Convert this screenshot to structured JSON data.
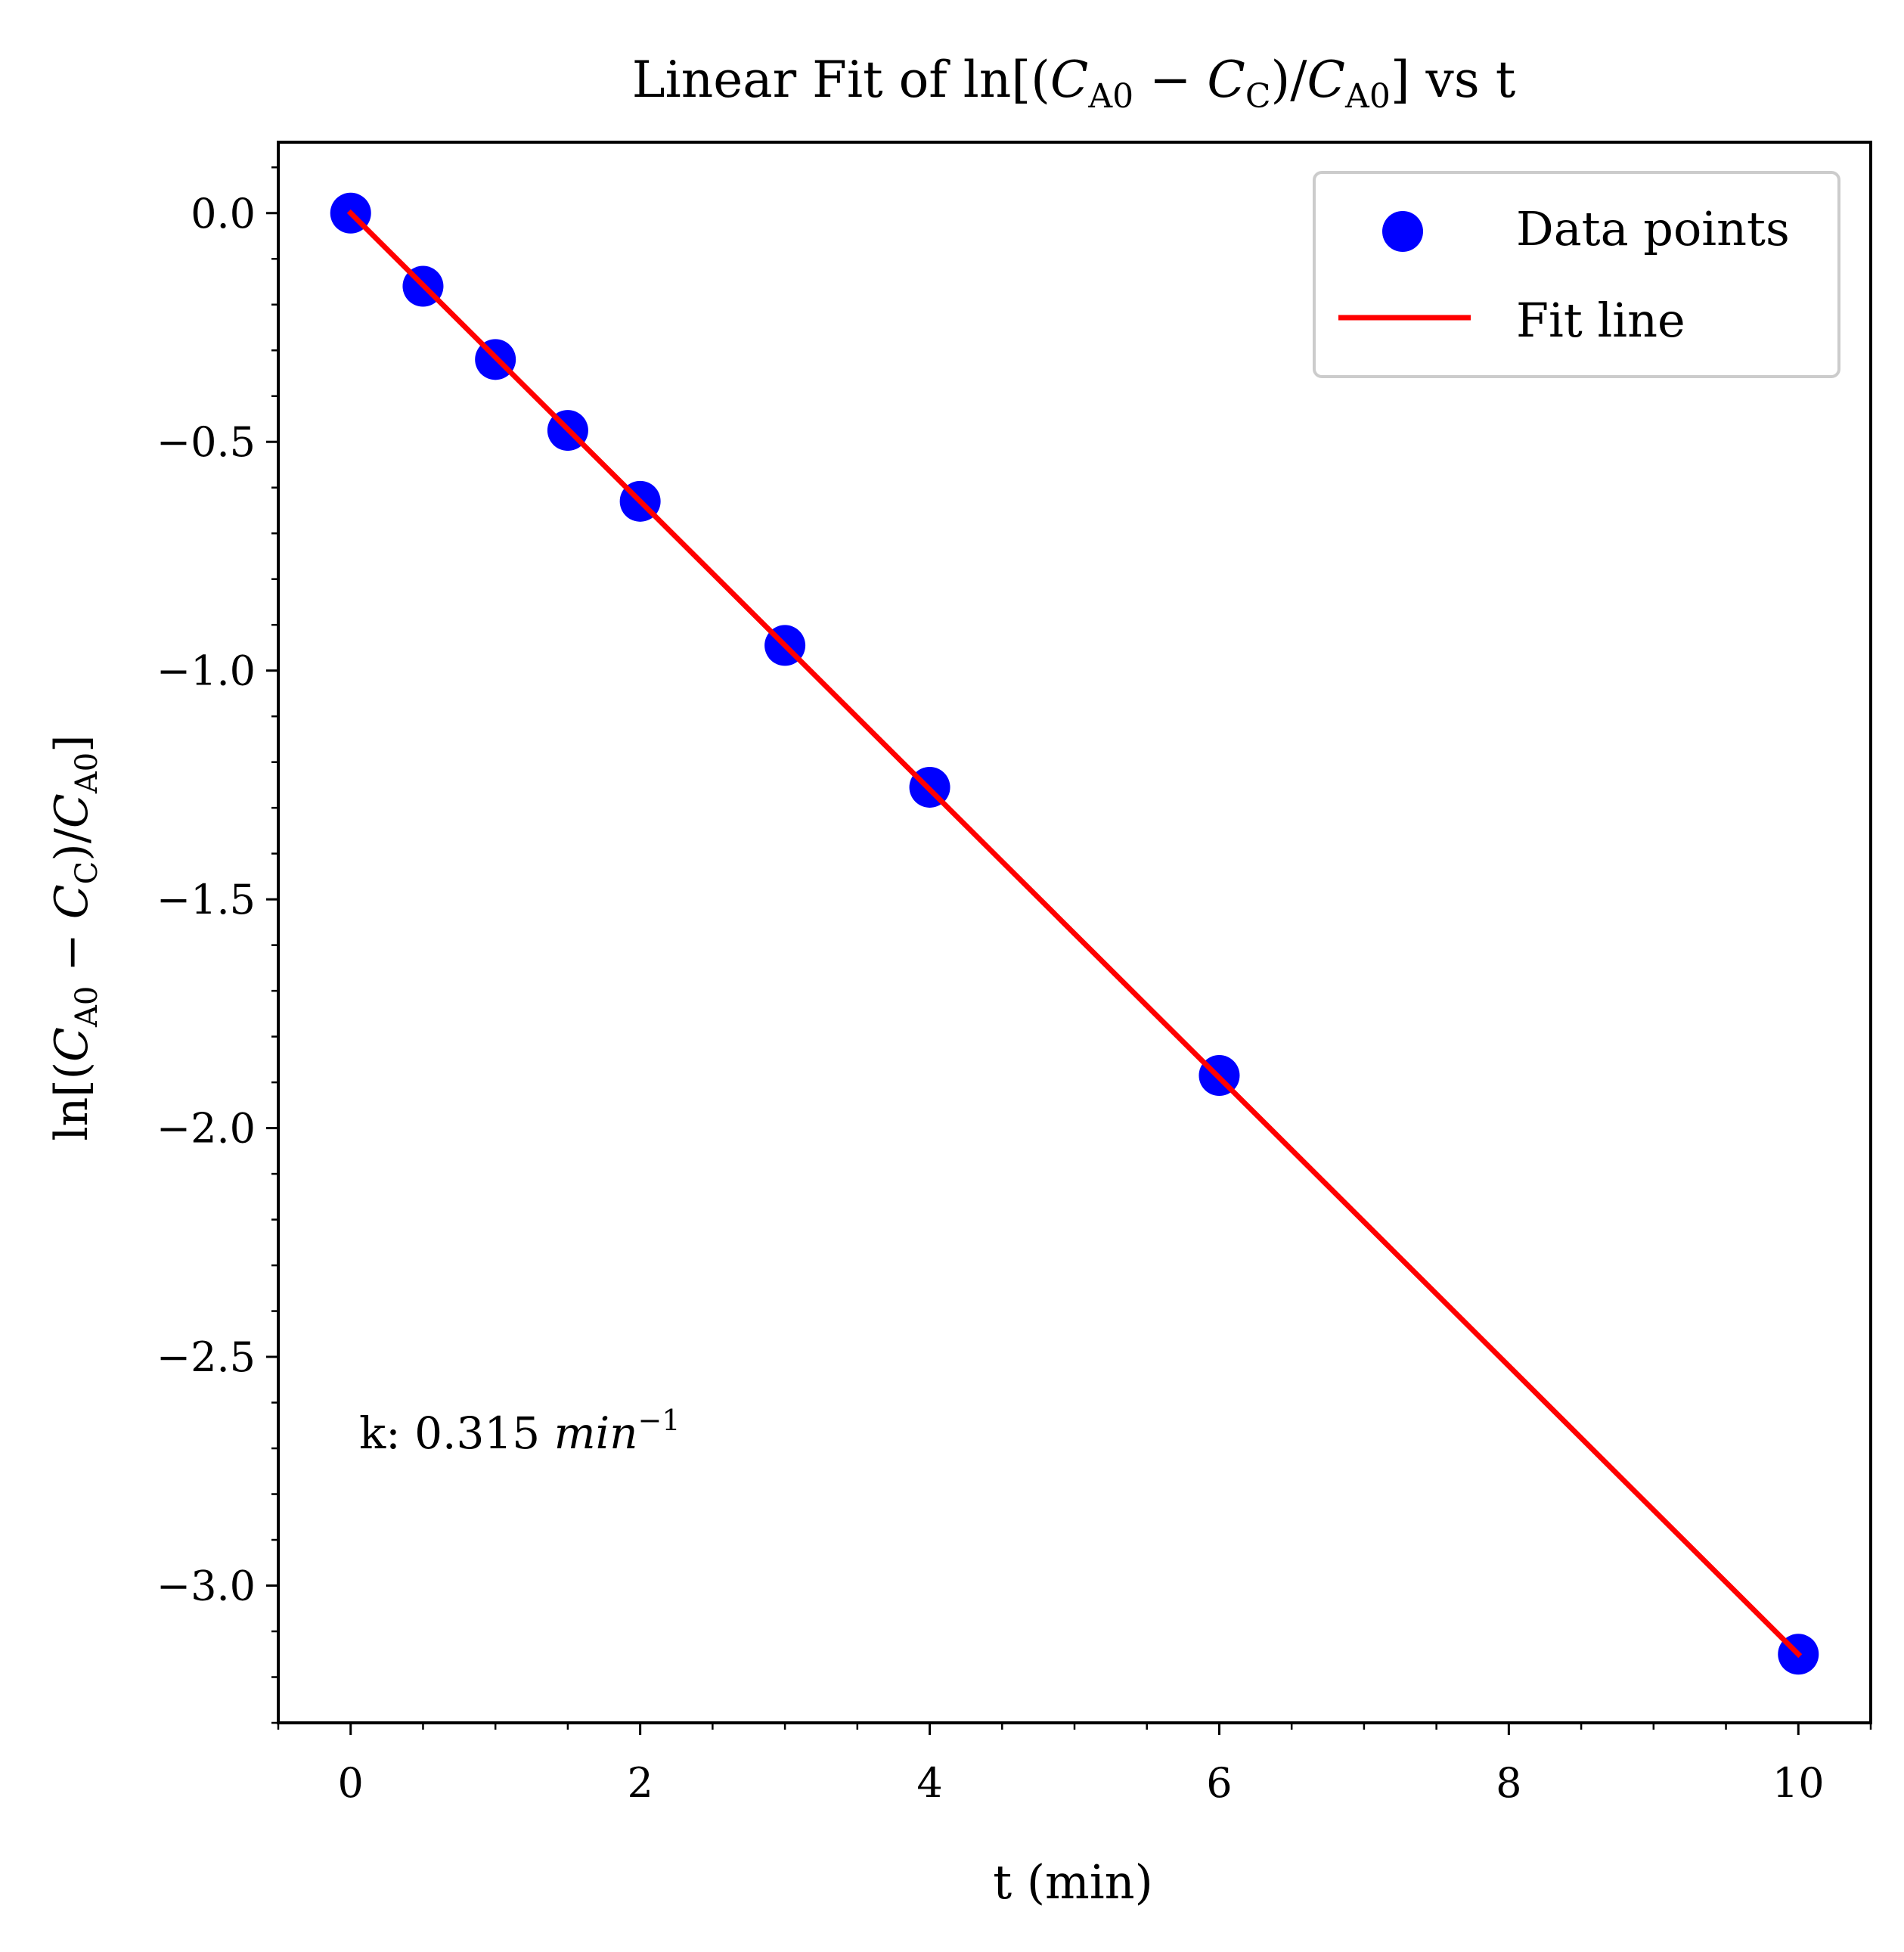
{
  "chart_data": {
    "type": "scatter",
    "title": {
      "pre": "Linear Fit of ln[(",
      "c1": "C",
      "c1_sub": "A0",
      "minus": " − ",
      "c2": "C",
      "c2_sub": "C",
      "mid": ")/",
      "c3": "C",
      "c3_sub": "A0",
      "post": "] vs t"
    },
    "xlabel": "t (min)",
    "ylabel": {
      "pre": "ln[(",
      "c1": "C",
      "c1_sub": "A0",
      "minus": " − ",
      "c2": "C",
      "c2_sub": "C",
      "mid": ")/",
      "c3": "C",
      "c3_sub": "A0",
      "post": "]"
    },
    "xlim": [
      -0.5,
      10.5
    ],
    "ylim": [
      -3.3,
      0.155
    ],
    "x_ticks": [
      0,
      2,
      4,
      6,
      8,
      10
    ],
    "x_tick_labels": [
      "0",
      "2",
      "4",
      "6",
      "8",
      "10"
    ],
    "x_minor_step": 0.5,
    "y_ticks": [
      0.0,
      -0.5,
      -1.0,
      -1.5,
      -2.0,
      -2.5,
      -3.0
    ],
    "y_tick_labels": [
      "0.0",
      "−0.5",
      "−1.0",
      "−1.5",
      "−2.0",
      "−2.5",
      "−3.0"
    ],
    "y_minor_step": 0.1,
    "grid": false,
    "legend": {
      "placement": "top-right",
      "entries": [
        {
          "label": "Data points",
          "type": "marker",
          "color": "#0000ff"
        },
        {
          "label": "Fit line",
          "type": "line",
          "color": "#ff0000"
        }
      ]
    },
    "series": [
      {
        "name": "Data points",
        "kind": "scatter",
        "color": "#0000ff",
        "x": [
          0,
          0.5,
          1,
          1.5,
          2,
          3,
          4,
          6,
          10
        ],
        "y": [
          0.0,
          -0.16,
          -0.32,
          -0.475,
          -0.63,
          -0.945,
          -1.255,
          -1.885,
          -3.15
        ]
      },
      {
        "name": "Fit line",
        "kind": "line",
        "color": "#ff0000",
        "x": [
          0,
          10
        ],
        "y": [
          0.0,
          -3.15
        ]
      }
    ],
    "annotation": {
      "prefix": "k: 0.315 ",
      "unit": "min",
      "exponent": "−1"
    }
  }
}
